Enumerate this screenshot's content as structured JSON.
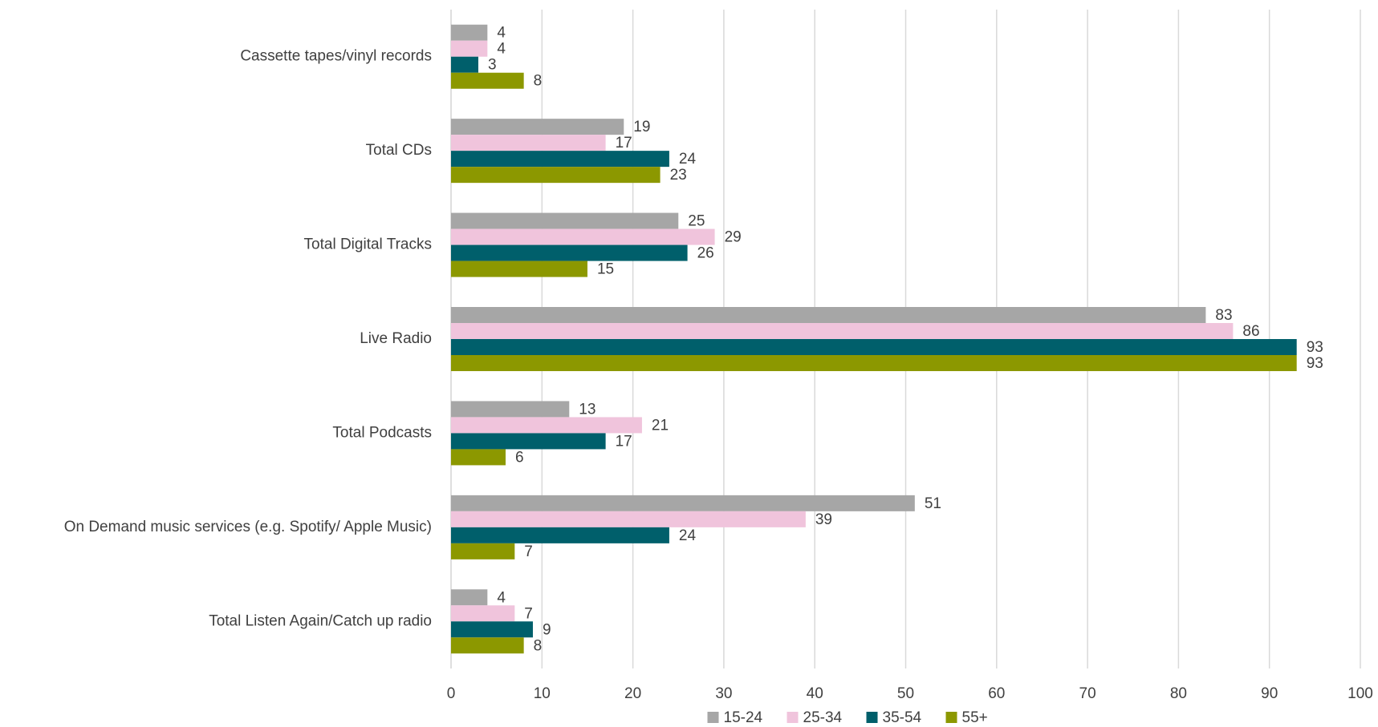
{
  "chart_data": {
    "type": "hbar",
    "categories": [
      "Cassette tapes/vinyl records",
      "Total CDs",
      "Total Digital Tracks",
      "Live Radio",
      "Total Podcasts",
      "On Demand music services (e.g. Spotify/ Apple Music)",
      "Total Listen Again/Catch up radio"
    ],
    "series": [
      {
        "name": "15-24",
        "color": "#a6a6a6",
        "values": [
          4,
          19,
          25,
          83,
          13,
          51,
          4
        ]
      },
      {
        "name": "25-34",
        "color": "#f0c4dc",
        "values": [
          4,
          17,
          29,
          86,
          21,
          39,
          7
        ]
      },
      {
        "name": "35-54",
        "color": "#005f6b",
        "values": [
          3,
          24,
          26,
          93,
          17,
          24,
          9
        ]
      },
      {
        "name": "55+",
        "color": "#8c9800",
        "values": [
          8,
          23,
          15,
          93,
          6,
          7,
          8
        ]
      }
    ],
    "xlim": [
      0,
      100
    ],
    "xticks": [
      0,
      10,
      20,
      30,
      40,
      50,
      60,
      70,
      80,
      90,
      100
    ],
    "grid": true,
    "legend": "bottom"
  }
}
